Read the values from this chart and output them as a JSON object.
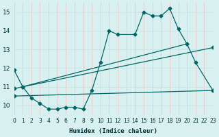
{
  "xlabel": "Humidex (Indice chaleur)",
  "bg_color": "#d8f0f0",
  "grid_color": "#c8e4e4",
  "grid_color2": "#e8c8c8",
  "line_color": "#006666",
  "xlim": [
    0,
    23
  ],
  "ylim": [
    9.5,
    15.5
  ],
  "yticks": [
    10,
    11,
    12,
    13,
    14,
    15
  ],
  "series1_x": [
    0,
    1,
    2,
    3,
    4,
    5,
    6,
    7,
    8,
    9,
    10,
    11,
    12,
    14,
    15,
    16,
    17,
    18,
    19,
    20,
    21,
    23
  ],
  "series1_y": [
    11.9,
    11.0,
    10.4,
    10.1,
    9.8,
    9.8,
    9.9,
    9.9,
    9.8,
    10.8,
    12.3,
    14.0,
    13.8,
    13.8,
    15.0,
    14.8,
    14.8,
    15.2,
    14.1,
    13.3,
    12.3,
    10.8
  ],
  "line2_x": [
    0,
    23
  ],
  "line2_y": [
    10.5,
    10.8
  ],
  "line3_x": [
    0,
    23
  ],
  "line3_y": [
    10.9,
    13.1
  ],
  "line4_x": [
    1,
    20
  ],
  "line4_y": [
    11.0,
    13.3
  ]
}
